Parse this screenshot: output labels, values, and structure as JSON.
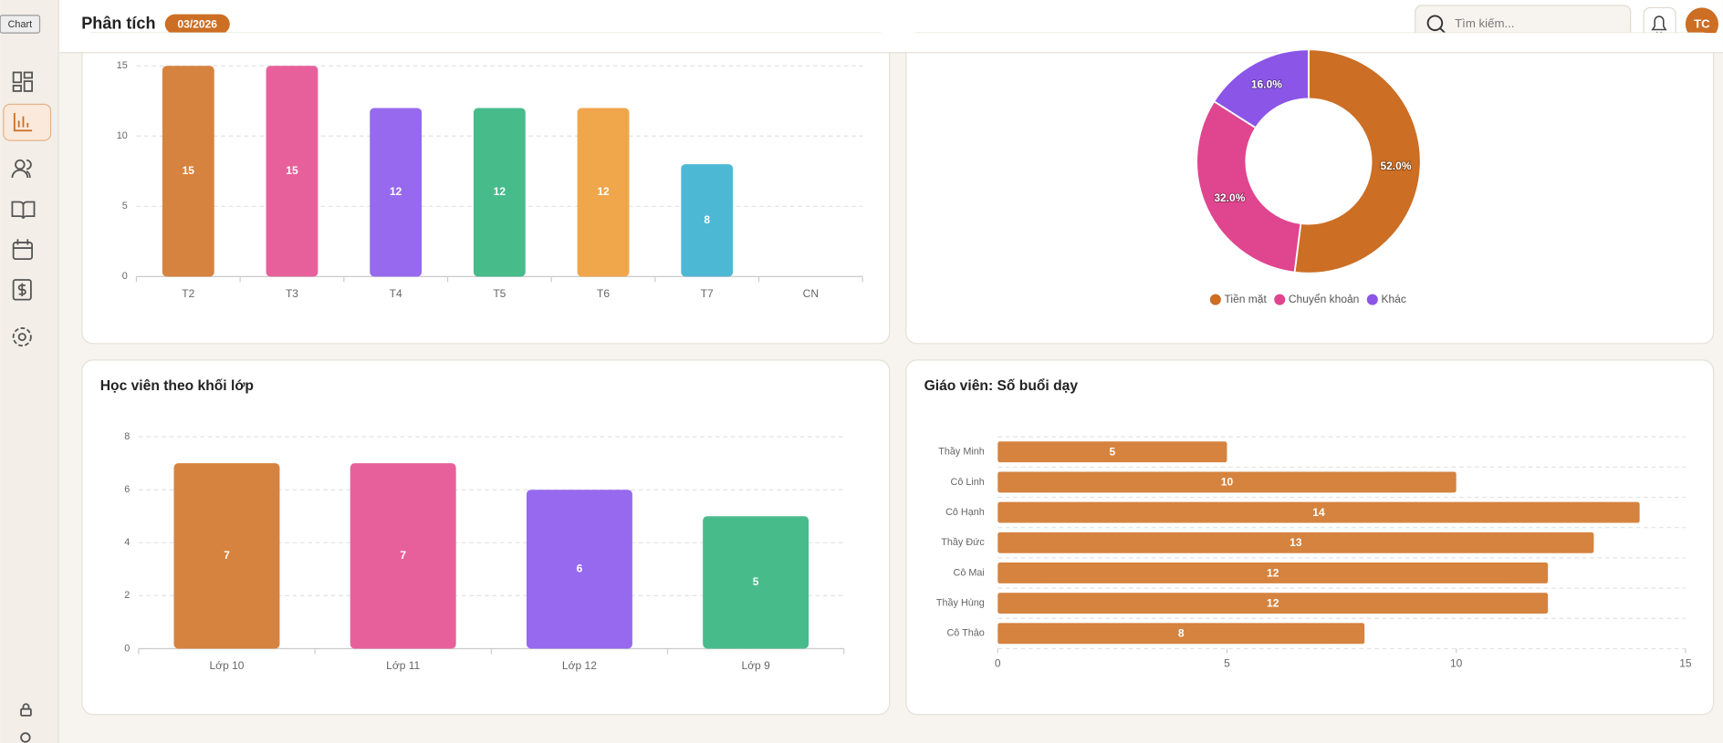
{
  "tooltip": "Chart",
  "header": {
    "title": "Phân tích",
    "badge": "03/2026",
    "search_placeholder": "Tìm kiếm...",
    "avatar": "TC"
  },
  "chart_data": [
    {
      "type": "bar",
      "categories": [
        "T2",
        "T3",
        "T4",
        "T5",
        "T6",
        "T7",
        "CN"
      ],
      "values": [
        15,
        15,
        12,
        12,
        12,
        8,
        null
      ],
      "colors": [
        "#d5833f",
        "#e8609b",
        "#9669ee",
        "#48bb8b",
        "#f0a64b",
        "#4db8d4",
        "#999999"
      ],
      "ylim": [
        0,
        15
      ],
      "yticks": [
        0,
        5,
        10,
        15
      ],
      "grid": true
    },
    {
      "type": "pie",
      "labels": [
        "Tiền mặt",
        "Chuyển khoản",
        "Khác"
      ],
      "values": [
        52,
        32,
        16
      ],
      "value_labels": [
        "52.0%",
        "32.0%",
        "16.0%"
      ],
      "colors": [
        "#cc6e24",
        "#e0458f",
        "#8b55e8"
      ],
      "donut": true,
      "legend": "bottom"
    },
    {
      "type": "bar",
      "title": "Học viên theo khối lớp",
      "categories": [
        "Lớp 10",
        "Lớp 11",
        "Lớp 12",
        "Lớp 9"
      ],
      "values": [
        7,
        7,
        6,
        5
      ],
      "colors": [
        "#d5833f",
        "#e8609b",
        "#9669ee",
        "#48bb8b"
      ],
      "ylim": [
        0,
        8
      ],
      "yticks": [
        0,
        2,
        4,
        6,
        8
      ],
      "grid": true
    },
    {
      "type": "barh",
      "title": "Giáo viên: Số buổi dạy",
      "categories": [
        "Thầy Minh",
        "Cô Linh",
        "Cô Hạnh",
        "Thầy Đức",
        "Cô Mai",
        "Thầy Hùng",
        "Cô Thảo"
      ],
      "values": [
        5,
        10,
        14,
        13,
        12,
        12,
        8
      ],
      "color": "#d5833f",
      "xlim": [
        0,
        15
      ],
      "xticks": [
        0,
        5,
        10,
        15
      ],
      "grid": true
    }
  ]
}
